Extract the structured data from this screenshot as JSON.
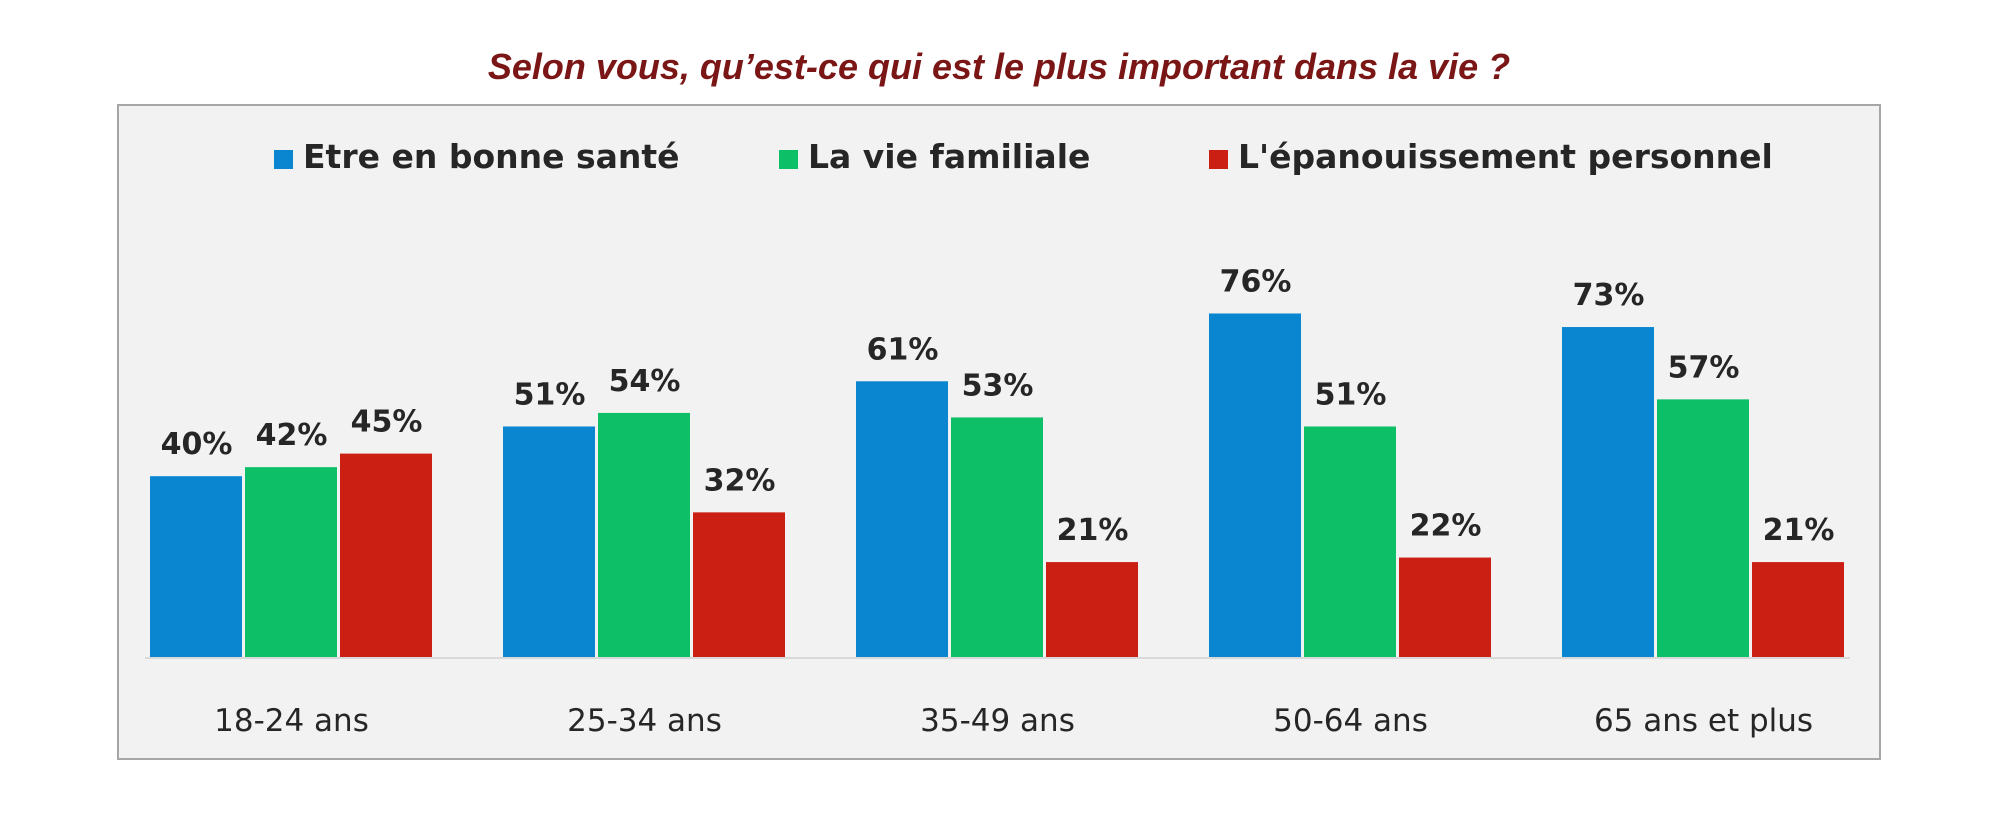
{
  "chart_data": {
    "type": "bar",
    "title": "Selon vous, qu’est-ce qui est le plus important dans la vie ?",
    "categories": [
      "18-24 ans",
      "25-34 ans",
      "35-49 ans",
      "50-64 ans",
      "65 ans et plus"
    ],
    "series": [
      {
        "name": "Etre en bonne santé",
        "color": "#0a86d0",
        "values": [
          40,
          51,
          61,
          76,
          73
        ],
        "labels": [
          "40%",
          "51%",
          "61%",
          "76%",
          "73%"
        ]
      },
      {
        "name": "La vie familiale",
        "color": "#0dbf66",
        "values": [
          42,
          54,
          53,
          51,
          57
        ],
        "labels": [
          "42%",
          "54%",
          "53%",
          "51%",
          "57%"
        ]
      },
      {
        "name": "L'épanouissement personnel",
        "color": "#cc1f14",
        "values": [
          45,
          32,
          21,
          22,
          21
        ],
        "labels": [
          "45%",
          "32%",
          "21%",
          "22%",
          "21%"
        ]
      }
    ],
    "ylim": [
      0,
      100
    ],
    "grid": false,
    "legend_position": "top-center",
    "value_unit": "%"
  }
}
